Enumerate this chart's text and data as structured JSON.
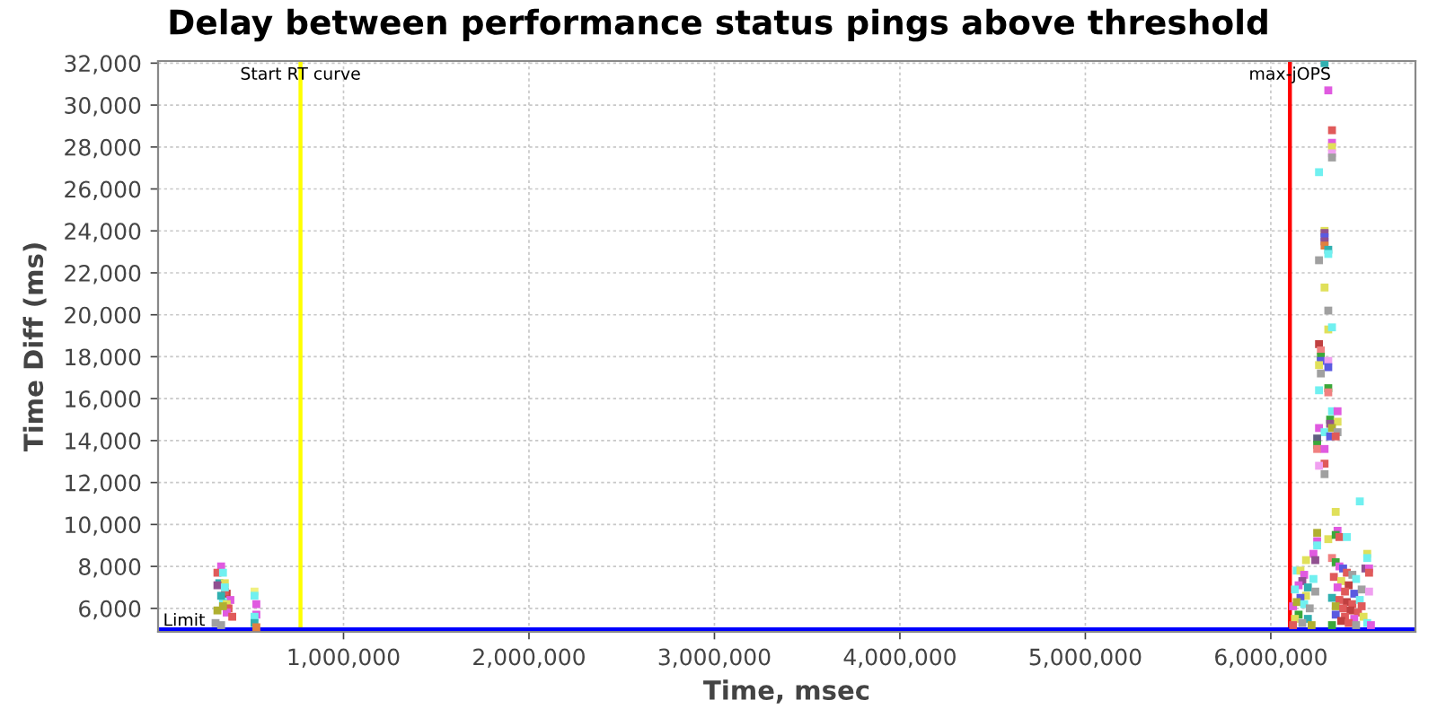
{
  "chart_data": {
    "type": "scatter",
    "title": "Delay between performance status pings above threshold",
    "xlabel": "Time, msec",
    "ylabel": "Time Diff (ms)",
    "x": [
      340000,
      320000,
      350000,
      330000,
      360000,
      320000,
      370000,
      360000,
      390000,
      350000,
      370000,
      380000,
      320000,
      370000,
      400000,
      310000,
      340000,
      340000,
      360000,
      350000,
      520000,
      520000,
      530000,
      530000,
      520000,
      520000,
      530000,
      6290000,
      6310000,
      6330000,
      6330000,
      6330000,
      6330000,
      6330000,
      6260000,
      6290000,
      6290000,
      6290000,
      6290000,
      6290000,
      6310000,
      6310000,
      6260000,
      6290000,
      6310000,
      6310000,
      6330000,
      6260000,
      6270000,
      6270000,
      6270000,
      6310000,
      6260000,
      6310000,
      6270000,
      6260000,
      6310000,
      6310000,
      6330000,
      6360000,
      6320000,
      6360000,
      6320000,
      6260000,
      6290000,
      6330000,
      6360000,
      6250000,
      6320000,
      6350000,
      6250000,
      6250000,
      6290000,
      6290000,
      6260000,
      6290000,
      6480000,
      6350000,
      6250000,
      6250000,
      6250000,
      6310000,
      6360000,
      6350000,
      6370000,
      6410000,
      6520000,
      6520000,
      6510000,
      6530000,
      6530000,
      6230000,
      6240000,
      6190000,
      6120000,
      6140000,
      6160000,
      6180000,
      6170000,
      6150000,
      6130000,
      6200000,
      6190000,
      6160000,
      6140000,
      6180000,
      6210000,
      6150000,
      6130000,
      6200000,
      6170000,
      6120000,
      6220000,
      6230000,
      6240000,
      6330000,
      6350000,
      6370000,
      6390000,
      6410000,
      6440000,
      6460000,
      6340000,
      6380000,
      6420000,
      6360000,
      6400000,
      6450000,
      6490000,
      6330000,
      6370000,
      6410000,
      6440000,
      6480000,
      6350000,
      6390000,
      6430000,
      6470000,
      6350000,
      6400000,
      6450000,
      6500000,
      6380000,
      6420000,
      6460000,
      6520000,
      6540000,
      6330000,
      6490000,
      6530000
    ],
    "values": [
      8000,
      7700,
      7700,
      7200,
      7200,
      7100,
      6700,
      6800,
      6400,
      6300,
      6200,
      6000,
      5900,
      5800,
      5600,
      5300,
      5200,
      6600,
      7000,
      6100,
      6800,
      6600,
      6200,
      5700,
      5600,
      5300,
      5100,
      32000,
      30700,
      28800,
      28200,
      28000,
      27700,
      27500,
      26800,
      24000,
      23900,
      23700,
      23500,
      23300,
      23100,
      22900,
      22600,
      21300,
      20200,
      19300,
      19400,
      18600,
      18300,
      18000,
      17800,
      17800,
      17600,
      17500,
      17200,
      16400,
      16500,
      16300,
      15400,
      15400,
      15000,
      14900,
      14800,
      14600,
      14400,
      14600,
      14400,
      14100,
      14200,
      14200,
      13800,
      13600,
      13600,
      12900,
      12800,
      12400,
      11100,
      10600,
      9600,
      9200,
      9000,
      9300,
      9700,
      9500,
      9400,
      9400,
      8600,
      8400,
      7900,
      7900,
      7700,
      8600,
      8300,
      8300,
      6100,
      7800,
      7800,
      7600,
      7300,
      7100,
      6900,
      7000,
      6600,
      6500,
      6300,
      6200,
      6000,
      5700,
      5500,
      5500,
      5300,
      5200,
      5200,
      7400,
      6800,
      8400,
      8200,
      8000,
      7900,
      7700,
      7600,
      7400,
      7500,
      7300,
      7100,
      7000,
      6800,
      6700,
      6900,
      6500,
      6400,
      6300,
      6200,
      6400,
      6100,
      6000,
      5900,
      5800,
      5700,
      5600,
      5500,
      5600,
      5400,
      5300,
      5200,
      5300,
      5200,
      5200,
      6100,
      6800
    ],
    "colors": [
      "#e05ae0",
      "#e05a5a",
      "#70f0f0",
      "#30b0b0",
      "#e0e05a",
      "#905090",
      "#c04040",
      "#e05a5a",
      "#e05ae0",
      "#70f0f0",
      "#e0e05a",
      "#e05a5a",
      "#b0b030",
      "#e05ae0",
      "#e05a5a",
      "#a0a0a0",
      "#a0a0a0",
      "#30b0b0",
      "#70f0f0",
      "#b0b030",
      "#f0f080",
      "#70f0f0",
      "#e05ae0",
      "#e05ae0",
      "#70f0f0",
      "#30b0b0",
      "#e08040",
      "#30b0b0",
      "#e05ae0",
      "#e05a5a",
      "#e05ae0",
      "#e0e05a",
      "#f0a0f0",
      "#a0a0a0",
      "#70f0f0",
      "#e0e05a",
      "#905090",
      "#5a5ae0",
      "#905090",
      "#e08040",
      "#30b0b0",
      "#70f0f0",
      "#a0a0a0",
      "#e0e05a",
      "#a0a0a0",
      "#e0e05a",
      "#70f0f0",
      "#c04040",
      "#f08080",
      "#3aa83a",
      "#5a5ae0",
      "#f0a0f0",
      "#e0e05a",
      "#5a5ae0",
      "#a0a0a0",
      "#70f0f0",
      "#3aa83a",
      "#f08080",
      "#70f0f0",
      "#e05ae0",
      "#3aa83a",
      "#e0e05a",
      "#905090",
      "#e05ae0",
      "#70f0f0",
      "#b0b030",
      "#a0a0a0",
      "#606080",
      "#5a5ae0",
      "#e05a5a",
      "#3aa83a",
      "#f08080",
      "#e05ae0",
      "#e05a5a",
      "#f0a0f0",
      "#a0a0a0",
      "#70f0f0",
      "#e0e05a",
      "#b0b030",
      "#e05ae0",
      "#70f0f0",
      "#e0e05a",
      "#e05ae0",
      "#3aa83a",
      "#e05a5a",
      "#70f0f0",
      "#e0e05a",
      "#70f0f0",
      "#905090",
      "#e05ae0",
      "#e05a5a",
      "#e05ae0",
      "#905090",
      "#e0e05a",
      "#e05ae0",
      "#70f0f0",
      "#e0e05a",
      "#e05ae0",
      "#905090",
      "#e05ae0",
      "#70f0f0",
      "#30b0b0",
      "#e0e05a",
      "#5a5ae0",
      "#b0b030",
      "#70f0f0",
      "#a0a0a0",
      "#3aa83a",
      "#e0e05a",
      "#30b0b0",
      "#a0a0a0",
      "#e05a5a",
      "#b0b030",
      "#70f0f0",
      "#a0a0a0",
      "#f08080",
      "#3aa83a",
      "#e05ae0",
      "#5a5ae0",
      "#e05a5a",
      "#a0a0a0",
      "#70f0f0",
      "#e05a5a",
      "#e0e05a",
      "#c04040",
      "#e05ae0",
      "#e05a5a",
      "#5a5ae0",
      "#a0a0a0",
      "#30b0b0",
      "#e05a5a",
      "#c04040",
      "#e05a5a",
      "#70f0f0",
      "#b0b030",
      "#e05a5a",
      "#c04040",
      "#e05a5a",
      "#5a5ae0",
      "#e05a5a",
      "#e05ae0",
      "#e0e05a",
      "#c04040",
      "#e05a5a",
      "#a0a0a0",
      "#70f0f0",
      "#e05ae0",
      "#3aa83a",
      "#e05a5a",
      "#f0a0f0"
    ],
    "marker": "square",
    "xlim": [
      0,
      6780000
    ],
    "ylim": [
      4880,
      32100
    ],
    "xticks": [
      {
        "value": 1000000,
        "label": "1,000,000"
      },
      {
        "value": 2000000,
        "label": "2,000,000"
      },
      {
        "value": 3000000,
        "label": "3,000,000"
      },
      {
        "value": 4000000,
        "label": "4,000,000"
      },
      {
        "value": 5000000,
        "label": "5,000,000"
      },
      {
        "value": 6000000,
        "label": "6,000,000"
      }
    ],
    "yticks": [
      {
        "value": 6000,
        "label": "6,000"
      },
      {
        "value": 8000,
        "label": "8,000"
      },
      {
        "value": 10000,
        "label": "10,000"
      },
      {
        "value": 12000,
        "label": "12,000"
      },
      {
        "value": 14000,
        "label": "14,000"
      },
      {
        "value": 16000,
        "label": "16,000"
      },
      {
        "value": 18000,
        "label": "18,000"
      },
      {
        "value": 20000,
        "label": "20,000"
      },
      {
        "value": 22000,
        "label": "22,000"
      },
      {
        "value": 24000,
        "label": "24,000"
      },
      {
        "value": 26000,
        "label": "26,000"
      },
      {
        "value": 28000,
        "label": "28,000"
      },
      {
        "value": 30000,
        "label": "30,000"
      },
      {
        "value": 32000,
        "label": "32,000"
      }
    ],
    "grid": true,
    "ref_lines": [
      {
        "axis": "x",
        "value": 768000,
        "label": "Start RT curve",
        "color": "#ffff00"
      },
      {
        "axis": "x",
        "value": 6103000,
        "label": "max-jOPS",
        "color": "#ff0000"
      },
      {
        "axis": "y",
        "value": 5000,
        "label": "Limit",
        "color": "#0000ff"
      }
    ]
  }
}
